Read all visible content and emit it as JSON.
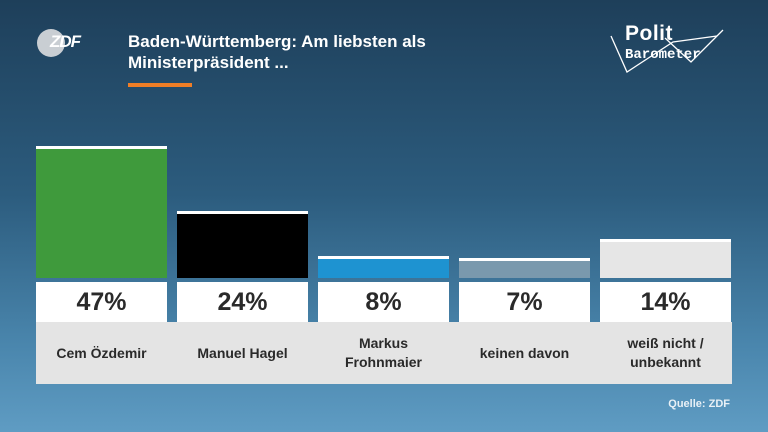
{
  "header": {
    "logo": "ZDF",
    "title": "Baden-Württemberg: Am liebsten als Ministerpräsident ...",
    "brand_line1": "Polit",
    "brand_line2": "Barometer"
  },
  "source": "Quelle: ZDF",
  "colors": {
    "accent": "#f07e26",
    "background_top": "#1e3f5a",
    "background_bottom": "#5f9cc3"
  },
  "chart_data": {
    "type": "bar",
    "title": "Baden-Württemberg: Am liebsten als Ministerpräsident ...",
    "categories": [
      "Cem Özdemir",
      "Manuel Hagel",
      "Markus\nFrohnmaier",
      "keinen davon",
      "weiß nicht /\nunbekannt"
    ],
    "values": [
      47,
      24,
      8,
      7,
      14
    ],
    "value_labels": [
      "47%",
      "24%",
      "8%",
      "7%",
      "14%"
    ],
    "unit": "%",
    "colors": [
      "#3f9a3c",
      "#000000",
      "#1e93d1",
      "#7a99ad",
      "#e6e6e6"
    ],
    "ylim": [
      0,
      47
    ],
    "grid": false,
    "legend": "none"
  }
}
